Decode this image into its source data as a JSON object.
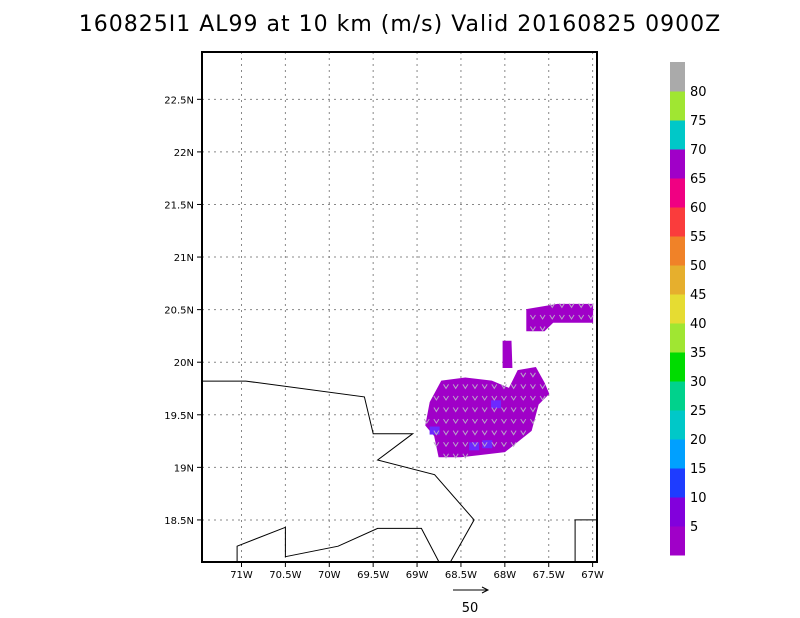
{
  "title": "160825I1 AL99 at 10 km (m/s) Valid 20160825 0900Z",
  "map": {
    "lon_range": [
      -71.45,
      -66.95
    ],
    "lat_range": [
      18.1,
      22.95
    ],
    "lon_ticks": [
      -71,
      -70.5,
      -70,
      -69.5,
      -69,
      -68.5,
      -68,
      -67.5,
      -67
    ],
    "lon_tick_labels": [
      "71W",
      "70.5W",
      "70W",
      "69.5W",
      "69W",
      "68.5W",
      "68W",
      "67.5W",
      "67W"
    ],
    "lat_ticks": [
      18.5,
      19,
      19.5,
      20,
      20.5,
      21,
      21.5,
      22,
      22.5
    ],
    "lat_tick_labels": [
      "18.5N",
      "19N",
      "19.5N",
      "20N",
      "20.5N",
      "21N",
      "21.5N",
      "22N",
      "22.5N"
    ],
    "grid": "dotted",
    "coastlines": [
      [
        [
          -71.45,
          19.82
        ],
        [
          -70.95,
          19.82
        ],
        [
          -69.6,
          19.67
        ],
        [
          -69.5,
          19.32
        ],
        [
          -69.05,
          19.32
        ],
        [
          -69.45,
          19.07
        ],
        [
          -68.8,
          18.93
        ],
        [
          -68.35,
          18.5
        ],
        [
          -68.62,
          18.1
        ]
      ],
      [
        [
          -68.75,
          18.1
        ],
        [
          -68.95,
          18.42
        ],
        [
          -69.45,
          18.42
        ],
        [
          -69.9,
          18.25
        ],
        [
          -70.5,
          18.15
        ],
        [
          -70.5,
          18.43
        ],
        [
          -71.05,
          18.25
        ],
        [
          -71.05,
          18.1
        ]
      ],
      [
        [
          -67.2,
          18.1
        ],
        [
          -67.2,
          18.5
        ],
        [
          -66.95,
          18.5
        ]
      ]
    ],
    "wind_field": {
      "main_region": [
        [
          -68.85,
          19.62
        ],
        [
          -68.72,
          19.82
        ],
        [
          -68.45,
          19.85
        ],
        [
          -68.15,
          19.82
        ],
        [
          -67.95,
          19.75
        ],
        [
          -67.85,
          19.92
        ],
        [
          -67.65,
          19.95
        ],
        [
          -67.55,
          19.8
        ],
        [
          -67.5,
          19.7
        ],
        [
          -67.62,
          19.6
        ],
        [
          -67.7,
          19.35
        ],
        [
          -67.85,
          19.25
        ],
        [
          -68.0,
          19.15
        ],
        [
          -68.3,
          19.12
        ],
        [
          -68.5,
          19.1
        ],
        [
          -68.75,
          19.1
        ],
        [
          -68.8,
          19.3
        ],
        [
          -68.9,
          19.4
        ]
      ],
      "spike_region": [
        [
          -68.02,
          19.95
        ],
        [
          -68.02,
          20.2
        ],
        [
          -67.93,
          20.2
        ],
        [
          -67.92,
          19.95
        ]
      ],
      "north_region": [
        [
          -67.75,
          20.3
        ],
        [
          -67.75,
          20.5
        ],
        [
          -67.4,
          20.55
        ],
        [
          -67.0,
          20.55
        ],
        [
          -67.0,
          20.38
        ],
        [
          -67.45,
          20.38
        ],
        [
          -67.55,
          20.3
        ]
      ],
      "speed_class": "5",
      "color": "#a000c8",
      "blue_patches": [
        [
          -68.1,
          19.6
        ],
        [
          -68.35,
          19.2
        ],
        [
          -68.2,
          19.22
        ],
        [
          -68.8,
          19.35
        ]
      ]
    },
    "reference_vector": {
      "label": "50",
      "direction": "east"
    }
  },
  "colorbar": {
    "levels": [
      {
        "label": "",
        "color": "#a000c8"
      },
      {
        "label": "5",
        "color": "#8200dc"
      },
      {
        "label": "10",
        "color": "#1e3cff"
      },
      {
        "label": "15",
        "color": "#00a0ff"
      },
      {
        "label": "20",
        "color": "#00c8c8"
      },
      {
        "label": "25",
        "color": "#00d28c"
      },
      {
        "label": "30",
        "color": "#00dc00"
      },
      {
        "label": "35",
        "color": "#a0e632"
      },
      {
        "label": "40",
        "color": "#e6dc32"
      },
      {
        "label": "45",
        "color": "#e6af2d"
      },
      {
        "label": "50",
        "color": "#f08228"
      },
      {
        "label": "55",
        "color": "#fa3c3c"
      },
      {
        "label": "60",
        "color": "#f00082"
      },
      {
        "label": "65",
        "color": "#a000c8"
      },
      {
        "label": "70",
        "color": "#00c8c8"
      },
      {
        "label": "75",
        "color": "#a0e632"
      },
      {
        "label": "80",
        "color": "#aaaaaa"
      }
    ]
  }
}
